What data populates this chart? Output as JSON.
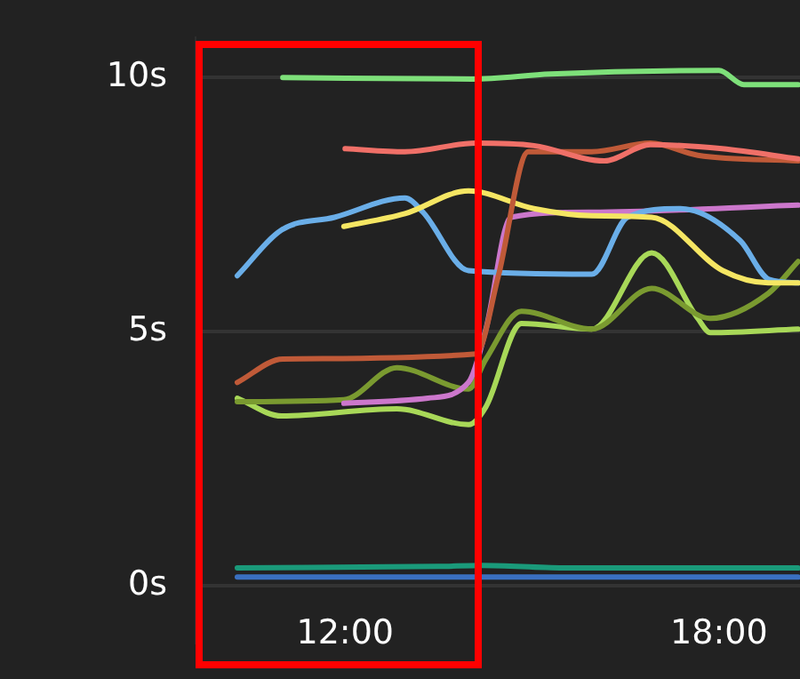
{
  "chart_data": {
    "type": "line",
    "xlim": [
      9.6,
      19.3
    ],
    "ylim": [
      -1.11,
      10.8
    ],
    "xticks": [
      {
        "value": 12,
        "label": "12:00"
      },
      {
        "value": 18,
        "label": "18:00"
      }
    ],
    "yticks": [
      {
        "value": 0,
        "label": "0s"
      },
      {
        "value": 5,
        "label": "5s"
      },
      {
        "value": 10,
        "label": "10s"
      }
    ],
    "grid": "y",
    "legend": false,
    "marker": "none",
    "line_style": "solid",
    "series": [
      {
        "color": "#7ee07a",
        "x": [
          11.0,
          14.04,
          15.3,
          18.0,
          18.4,
          19.27
        ],
        "values": [
          10.0,
          9.97,
          10.07,
          10.14,
          9.86,
          9.86
        ]
      },
      {
        "color": "#f07068",
        "x": [
          12.0,
          12.96,
          14.1,
          15.03,
          16.16,
          16.9,
          18.05,
          19.27
        ],
        "values": [
          8.6,
          8.54,
          8.71,
          8.66,
          8.36,
          8.68,
          8.6,
          8.4
        ]
      },
      {
        "color": "#c05a38",
        "x": [
          10.27,
          11.0,
          14.1,
          14.46,
          14.94,
          15.96,
          16.9,
          17.66,
          19.27
        ],
        "values": [
          4.0,
          4.46,
          4.56,
          6.1,
          8.54,
          8.54,
          8.71,
          8.47,
          8.36
        ]
      },
      {
        "color": "#f5e663",
        "x": [
          11.98,
          12.96,
          13.98,
          15.03,
          15.96,
          16.92,
          18.06,
          18.79,
          19.27
        ],
        "values": [
          7.07,
          7.32,
          7.77,
          7.42,
          7.28,
          7.25,
          6.2,
          5.96,
          5.96
        ]
      },
      {
        "color": "#6aaee8",
        "x": [
          10.27,
          10.98,
          11.83,
          12.96,
          13.25,
          13.98,
          15.96,
          16.53,
          17.38,
          18.34,
          18.8,
          19.27
        ],
        "values": [
          6.1,
          7.0,
          7.25,
          7.63,
          7.35,
          6.2,
          6.13,
          7.25,
          7.42,
          6.79,
          6.03,
          5.96
        ]
      },
      {
        "color": "#cc77cc",
        "x": [
          11.98,
          13.33,
          13.98,
          14.26,
          14.66,
          15.96,
          19.27
        ],
        "values": [
          3.59,
          3.69,
          4.0,
          5.05,
          7.25,
          7.35,
          7.49
        ]
      },
      {
        "color": "#7a9a30",
        "x": [
          10.27,
          11.98,
          12.83,
          13.98,
          14.26,
          14.83,
          15.96,
          16.92,
          17.86,
          18.79,
          19.27
        ],
        "values": [
          3.62,
          3.66,
          4.29,
          3.87,
          4.46,
          5.4,
          5.05,
          5.85,
          5.26,
          5.75,
          6.38
        ]
      },
      {
        "color": "#a8d858",
        "x": [
          10.27,
          10.98,
          12.83,
          13.98,
          14.26,
          14.83,
          15.96,
          16.92,
          17.66,
          17.86,
          19.27
        ],
        "values": [
          3.69,
          3.34,
          3.48,
          3.17,
          3.52,
          5.16,
          5.05,
          6.55,
          5.26,
          4.98,
          5.05
        ]
      },
      {
        "color": "#1a9a7a",
        "x": [
          10.27,
          13.5,
          14.2,
          15.5,
          19.27
        ],
        "values": [
          0.35,
          0.38,
          0.4,
          0.35,
          0.35
        ]
      },
      {
        "color": "#3a70c0",
        "x": [
          10.27,
          19.27
        ],
        "values": [
          0.17,
          0.17
        ]
      }
    ]
  }
}
